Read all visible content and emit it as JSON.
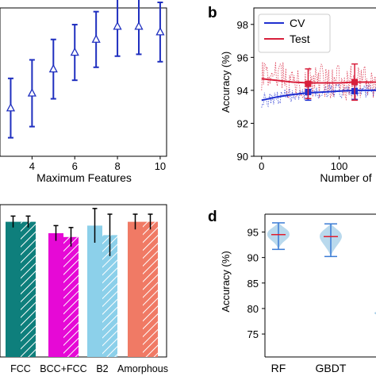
{
  "chart_data": [
    {
      "panel": "a",
      "type": "scatter",
      "xlabel": "Maximum  Features",
      "ylabel": "",
      "xlim": [
        2.5,
        10.3
      ],
      "ylim": [
        90,
        98
      ],
      "xticks": [
        "4",
        "6",
        "8",
        "10"
      ],
      "marker": "triangle",
      "color": "#1f2fbf",
      "x": [
        3,
        4,
        5,
        6,
        7,
        8,
        9,
        10
      ],
      "y": [
        92.6,
        93.4,
        94.7,
        95.6,
        96.3,
        97.0,
        97.0,
        96.7
      ],
      "err": [
        1.6,
        1.8,
        1.6,
        1.5,
        1.5,
        1.6,
        1.5,
        1.6
      ]
    },
    {
      "panel": "b",
      "type": "line",
      "xlabel": "Number of",
      "ylabel": "Accuracy (%)",
      "xlim": [
        -10,
        170
      ],
      "ylim": [
        90,
        99
      ],
      "yticks": [
        "90",
        "92",
        "94",
        "96",
        "98"
      ],
      "xticks": [
        "0",
        "100"
      ],
      "legend": "top-left",
      "series": [
        {
          "name": "CV",
          "color": "#1f2fd0",
          "trend_x": [
            0,
            20,
            40,
            60,
            80,
            100,
            120,
            140,
            160
          ],
          "trend_y": [
            93.4,
            93.6,
            93.75,
            93.85,
            93.9,
            93.95,
            94.0,
            94.0,
            94.0
          ],
          "points": [
            {
              "x": 60,
              "y": 93.9,
              "err": 0.5
            },
            {
              "x": 120,
              "y": 93.95,
              "err": 0.5
            }
          ]
        },
        {
          "name": "Test",
          "color": "#d81f3b",
          "trend_x": [
            0,
            20,
            40,
            60,
            80,
            100,
            120,
            140,
            160
          ],
          "trend_y": [
            94.7,
            94.6,
            94.5,
            94.45,
            94.45,
            94.45,
            94.5,
            94.5,
            94.5
          ],
          "points": [
            {
              "x": 60,
              "y": 94.4,
              "err": 0.9
            },
            {
              "x": 120,
              "y": 94.5,
              "err": 1.1
            }
          ]
        }
      ]
    },
    {
      "panel": "c",
      "type": "bar",
      "categories": [
        "FCC",
        "BCC+FCC",
        "B2",
        "Amorphous"
      ],
      "ylim": [
        60,
        100
      ],
      "series": [
        {
          "name": "",
          "fill": "solid",
          "values": [
            95.5,
            92.5,
            94.5,
            95.5
          ],
          "err": [
            1.5,
            2.0,
            4.5,
            2.0
          ]
        },
        {
          "name": "",
          "fill": "hatched",
          "values": [
            95.5,
            91.5,
            92.0,
            95.5
          ],
          "err": [
            1.5,
            2.5,
            5.5,
            2.0
          ]
        }
      ],
      "colors": [
        "#0e7f7c",
        "#e609d6",
        "#8cd0ea",
        "#f07a65"
      ]
    },
    {
      "panel": "d",
      "type": "violin",
      "ylabel": "Accuracy (%)",
      "ylim": [
        70.5,
        98.5
      ],
      "yticks": [
        "75",
        "80",
        "85",
        "90",
        "95"
      ],
      "categories": [
        "RF",
        "GBDT"
      ],
      "series": [
        {
          "name": "RF",
          "median": 94.5,
          "min": 91.6,
          "max": 96.8
        },
        {
          "name": "GBDT",
          "median": 94.1,
          "min": 90.2,
          "max": 96.6
        }
      ]
    }
  ],
  "labels": {
    "b": "b",
    "d": "d"
  }
}
